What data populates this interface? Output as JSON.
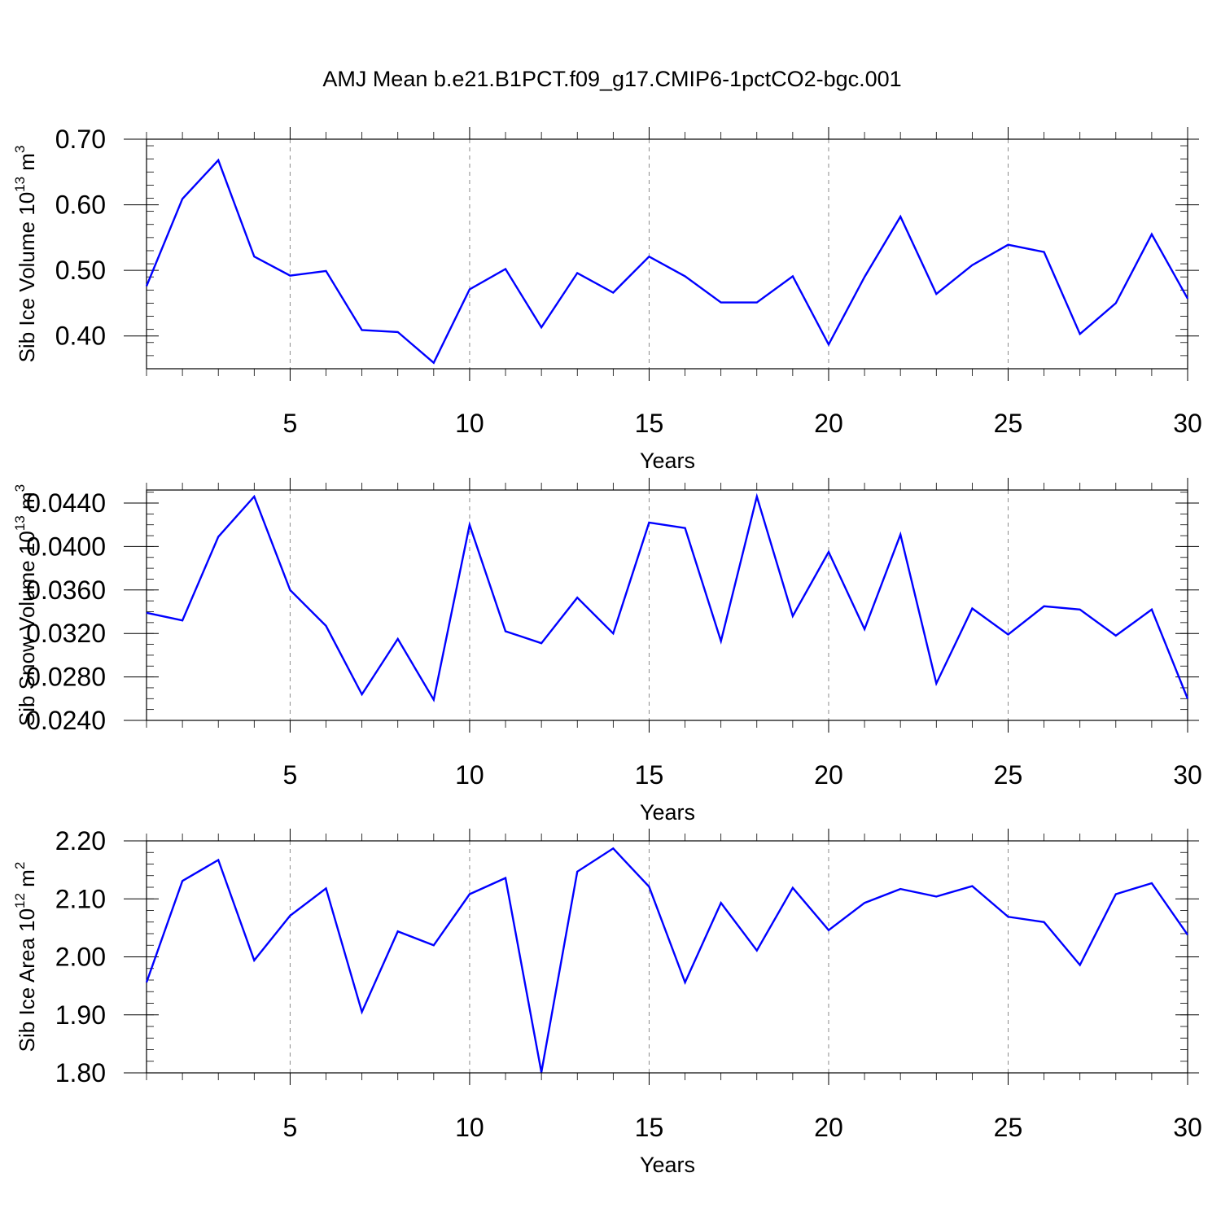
{
  "title": "AMJ Mean b.e21.B1PCT.f09_g17.CMIP6-1pctCO2-bgc.001",
  "colors": {
    "line": "#0000ff",
    "grid": "#8c8c8c",
    "axis": "#000000"
  },
  "chart_data": [
    {
      "type": "line",
      "xlabel": "Years",
      "ylabel": {
        "text": "Sib Ice Volume 10",
        "exp": "13",
        "unit": " m",
        "unit_exp": "3"
      },
      "xlim": [
        1,
        30
      ],
      "ylim": [
        0.35,
        0.7
      ],
      "x_ticks": [
        5,
        10,
        15,
        20,
        25,
        30
      ],
      "y_ticks": [
        0.4,
        0.5,
        0.6,
        0.7
      ],
      "y_tick_labels": [
        "0.40",
        "0.50",
        "0.60",
        "0.70"
      ],
      "y_minor_step": 0.02,
      "grid": "vertical dashed at major x ticks",
      "x": [
        1,
        2,
        3,
        4,
        5,
        6,
        7,
        8,
        9,
        10,
        11,
        12,
        13,
        14,
        15,
        16,
        17,
        18,
        19,
        20,
        21,
        22,
        23,
        24,
        25,
        26,
        27,
        28,
        29,
        30
      ],
      "values": [
        0.476,
        0.609,
        0.668,
        0.521,
        0.492,
        0.499,
        0.409,
        0.406,
        0.359,
        0.471,
        0.502,
        0.413,
        0.496,
        0.466,
        0.521,
        0.491,
        0.451,
        0.451,
        0.491,
        0.387,
        0.49,
        0.582,
        0.464,
        0.508,
        0.539,
        0.528,
        0.403,
        0.45,
        0.555,
        0.457
      ]
    },
    {
      "type": "line",
      "xlabel": "Years",
      "ylabel": {
        "text": "Sib Snow Volume 10",
        "exp": "13",
        "unit": " m",
        "unit_exp": "3"
      },
      "xlim": [
        1,
        30
      ],
      "ylim": [
        0.024,
        0.0452
      ],
      "x_ticks": [
        5,
        10,
        15,
        20,
        25,
        30
      ],
      "y_ticks": [
        0.024,
        0.028,
        0.032,
        0.036,
        0.04,
        0.044
      ],
      "y_tick_labels": [
        "0.0240",
        "0.0280",
        "0.0320",
        "0.0360",
        "0.0400",
        "0.0440"
      ],
      "y_minor_step": 0.001,
      "grid": "vertical dashed at major x ticks",
      "x": [
        1,
        2,
        3,
        4,
        5,
        6,
        7,
        8,
        9,
        10,
        11,
        12,
        13,
        14,
        15,
        16,
        17,
        18,
        19,
        20,
        21,
        22,
        23,
        24,
        25,
        26,
        27,
        28,
        29,
        30
      ],
      "values": [
        0.0339,
        0.0332,
        0.0409,
        0.0446,
        0.036,
        0.0327,
        0.0264,
        0.0315,
        0.0259,
        0.042,
        0.0322,
        0.0311,
        0.0353,
        0.032,
        0.0422,
        0.0417,
        0.0313,
        0.0446,
        0.0336,
        0.0395,
        0.0324,
        0.0411,
        0.0274,
        0.0343,
        0.0319,
        0.0345,
        0.0342,
        0.0318,
        0.0342,
        0.026
      ]
    },
    {
      "type": "line",
      "xlabel": "Years",
      "ylabel": {
        "text": "Sib Ice Area 10",
        "exp": "12",
        "unit": " m",
        "unit_exp": "2"
      },
      "xlim": [
        1,
        30
      ],
      "ylim": [
        1.8,
        2.2
      ],
      "x_ticks": [
        5,
        10,
        15,
        20,
        25,
        30
      ],
      "y_ticks": [
        1.8,
        1.9,
        2.0,
        2.1,
        2.2
      ],
      "y_tick_labels": [
        "1.80",
        "1.90",
        "2.00",
        "2.10",
        "2.20"
      ],
      "y_minor_step": 0.02,
      "grid": "vertical dashed at major x ticks",
      "x": [
        1,
        2,
        3,
        4,
        5,
        6,
        7,
        8,
        9,
        10,
        11,
        12,
        13,
        14,
        15,
        16,
        17,
        18,
        19,
        20,
        21,
        22,
        23,
        24,
        25,
        26,
        27,
        28,
        29,
        30
      ],
      "values": [
        1.956,
        2.131,
        2.167,
        1.994,
        2.071,
        2.118,
        1.905,
        2.044,
        2.02,
        2.108,
        2.136,
        1.801,
        2.147,
        2.187,
        2.121,
        1.956,
        2.093,
        2.011,
        2.119,
        2.046,
        2.093,
        2.117,
        2.104,
        2.122,
        2.069,
        2.06,
        1.986,
        2.108,
        2.127,
        2.038
      ]
    }
  ]
}
